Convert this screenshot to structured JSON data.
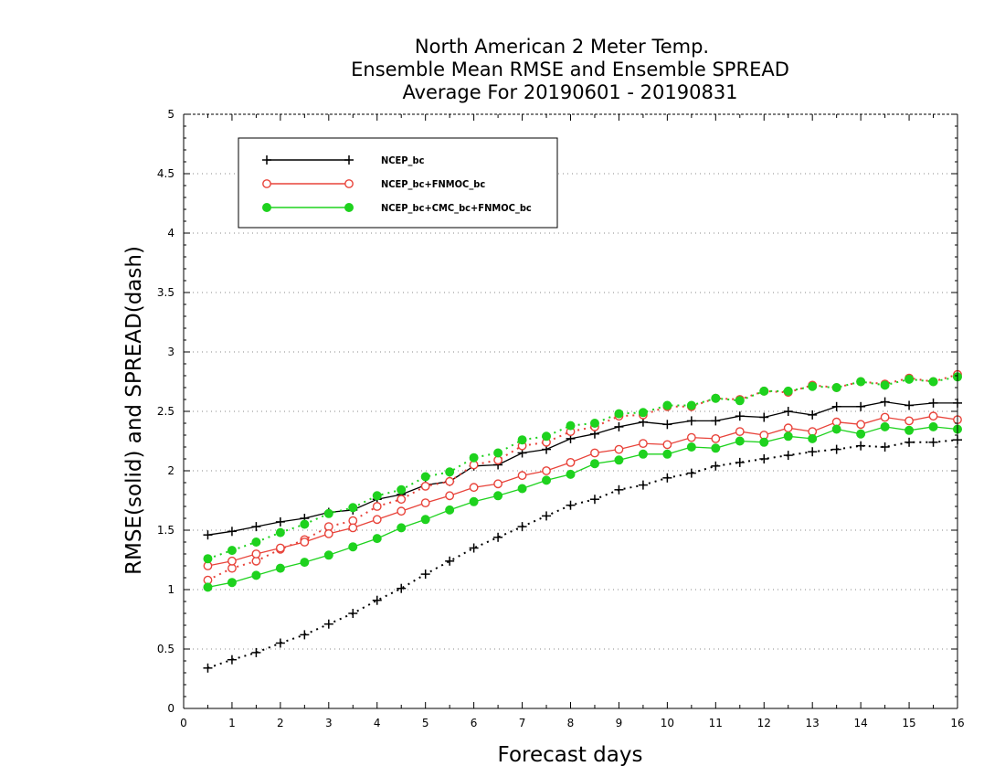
{
  "chart_data": {
    "type": "line",
    "title": [
      "North American 2 Meter Temp.",
      "Ensemble Mean RMSE and Ensemble SPREAD",
      "Average For 20190601 - 20190831"
    ],
    "xlabel": "Forecast days",
    "ylabel": "RMSE(solid) and SPREAD(dash)",
    "xlim": [
      0,
      16
    ],
    "ylim": [
      0,
      5
    ],
    "xticks": [
      "0",
      "1",
      "2",
      "3",
      "4",
      "5",
      "6",
      "7",
      "8",
      "9",
      "10",
      "11",
      "12",
      "13",
      "14",
      "15",
      "16"
    ],
    "yticks": [
      "0",
      "0.5",
      "1",
      "1.5",
      "2",
      "2.5",
      "3",
      "3.5",
      "4",
      "4.5",
      "5"
    ],
    "grid": "horizontal dotted",
    "legend_position": "top-left",
    "x": [
      0.5,
      1,
      1.5,
      2,
      2.5,
      3,
      3.5,
      4,
      4.5,
      5,
      5.5,
      6,
      6.5,
      7,
      7.5,
      8,
      8.5,
      9,
      9.5,
      10,
      10.5,
      11,
      11.5,
      12,
      12.5,
      13,
      13.5,
      14,
      14.5,
      15,
      15.5,
      16
    ],
    "series": [
      {
        "name": "NCEP_bc",
        "color": "#000000",
        "marker": "plus",
        "rmse": [
          1.46,
          1.49,
          1.53,
          1.57,
          1.6,
          1.65,
          1.67,
          1.76,
          1.8,
          1.88,
          1.91,
          2.04,
          2.05,
          2.15,
          2.18,
          2.27,
          2.31,
          2.37,
          2.41,
          2.39,
          2.42,
          2.42,
          2.46,
          2.45,
          2.5,
          2.47,
          2.54,
          2.54,
          2.58,
          2.55,
          2.57,
          2.57
        ],
        "spread": [
          0.34,
          0.41,
          0.47,
          0.55,
          0.62,
          0.71,
          0.8,
          0.91,
          1.01,
          1.13,
          1.24,
          1.35,
          1.44,
          1.53,
          1.62,
          1.71,
          1.76,
          1.84,
          1.88,
          1.94,
          1.98,
          2.04,
          2.07,
          2.1,
          2.13,
          2.16,
          2.18,
          2.21,
          2.2,
          2.24,
          2.24,
          2.26
        ]
      },
      {
        "name": "NCEP_bc+FNMOC_bc",
        "color": "#e8433a",
        "marker": "open-circle",
        "rmse": [
          1.2,
          1.24,
          1.3,
          1.35,
          1.4,
          1.47,
          1.52,
          1.59,
          1.66,
          1.73,
          1.79,
          1.86,
          1.89,
          1.96,
          2.0,
          2.07,
          2.15,
          2.18,
          2.23,
          2.22,
          2.28,
          2.27,
          2.33,
          2.3,
          2.36,
          2.33,
          2.41,
          2.39,
          2.45,
          2.42,
          2.46,
          2.43
        ],
        "spread": [
          1.08,
          1.18,
          1.24,
          1.34,
          1.42,
          1.53,
          1.58,
          1.7,
          1.76,
          1.87,
          1.91,
          2.05,
          2.09,
          2.21,
          2.24,
          2.33,
          2.37,
          2.46,
          2.47,
          2.54,
          2.54,
          2.61,
          2.6,
          2.67,
          2.66,
          2.72,
          2.7,
          2.75,
          2.73,
          2.78,
          2.75,
          2.81
        ]
      },
      {
        "name": "NCEP_bc+CMC_bc+FNMOC_bc",
        "color": "#1ed21e",
        "marker": "filled-circle",
        "rmse": [
          1.02,
          1.06,
          1.12,
          1.18,
          1.23,
          1.29,
          1.36,
          1.43,
          1.52,
          1.59,
          1.67,
          1.74,
          1.79,
          1.85,
          1.92,
          1.97,
          2.06,
          2.09,
          2.14,
          2.14,
          2.2,
          2.19,
          2.25,
          2.24,
          2.29,
          2.27,
          2.35,
          2.31,
          2.37,
          2.34,
          2.37,
          2.35
        ],
        "spread": [
          1.26,
          1.33,
          1.4,
          1.48,
          1.55,
          1.64,
          1.69,
          1.79,
          1.84,
          1.95,
          1.99,
          2.11,
          2.15,
          2.26,
          2.29,
          2.38,
          2.4,
          2.48,
          2.49,
          2.55,
          2.55,
          2.61,
          2.59,
          2.67,
          2.67,
          2.71,
          2.7,
          2.75,
          2.72,
          2.77,
          2.75,
          2.79
        ]
      }
    ]
  }
}
